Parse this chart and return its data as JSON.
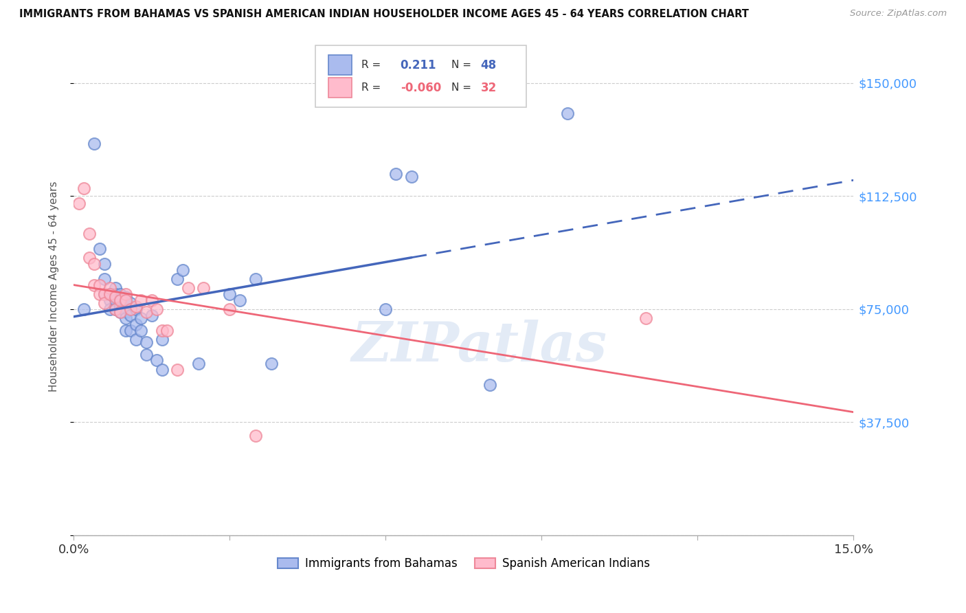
{
  "title": "IMMIGRANTS FROM BAHAMAS VS SPANISH AMERICAN INDIAN HOUSEHOLDER INCOME AGES 45 - 64 YEARS CORRELATION CHART",
  "source": "Source: ZipAtlas.com",
  "ylabel_label": "Householder Income Ages 45 - 64 years",
  "xlim": [
    0.0,
    0.15
  ],
  "ylim": [
    0,
    165000
  ],
  "ytick_values": [
    0,
    37500,
    75000,
    112500,
    150000
  ],
  "ytick_labels": [
    "",
    "$37,500",
    "$75,000",
    "$112,500",
    "$150,000"
  ],
  "xtick_values": [
    0.0,
    0.03,
    0.06,
    0.09,
    0.12,
    0.15
  ],
  "xtick_labels": [
    "0.0%",
    "",
    "",
    "",
    "",
    "15.0%"
  ],
  "blue_R": 0.211,
  "blue_N": 48,
  "pink_R": -0.06,
  "pink_N": 32,
  "legend_label_blue": "Immigrants from Bahamas",
  "legend_label_pink": "Spanish American Indians",
  "watermark": "ZIPatlas",
  "blue_dot_face": "#AABBEE",
  "blue_dot_edge": "#6688CC",
  "pink_dot_face": "#FFBBCC",
  "pink_dot_edge": "#EE8899",
  "blue_line_color": "#4466BB",
  "pink_line_color": "#EE6677",
  "right_tick_color": "#4499FF",
  "blue_scatter_x": [
    0.002,
    0.004,
    0.005,
    0.006,
    0.006,
    0.006,
    0.007,
    0.007,
    0.007,
    0.008,
    0.008,
    0.008,
    0.008,
    0.009,
    0.009,
    0.009,
    0.009,
    0.01,
    0.01,
    0.01,
    0.01,
    0.01,
    0.011,
    0.011,
    0.011,
    0.012,
    0.012,
    0.012,
    0.013,
    0.013,
    0.014,
    0.014,
    0.015,
    0.016,
    0.017,
    0.017,
    0.02,
    0.021,
    0.024,
    0.03,
    0.032,
    0.035,
    0.038,
    0.06,
    0.062,
    0.065,
    0.08,
    0.095
  ],
  "blue_scatter_y": [
    75000,
    130000,
    95000,
    90000,
    85000,
    80000,
    80000,
    78000,
    75000,
    82000,
    80000,
    78000,
    75000,
    80000,
    78000,
    76000,
    74000,
    79000,
    77000,
    74000,
    72000,
    68000,
    77000,
    73000,
    68000,
    75000,
    70000,
    65000,
    72000,
    68000,
    64000,
    60000,
    73000,
    58000,
    65000,
    55000,
    85000,
    88000,
    57000,
    80000,
    78000,
    85000,
    57000,
    75000,
    120000,
    119000,
    50000,
    140000
  ],
  "pink_scatter_x": [
    0.001,
    0.002,
    0.003,
    0.003,
    0.004,
    0.004,
    0.005,
    0.005,
    0.006,
    0.006,
    0.007,
    0.007,
    0.008,
    0.008,
    0.009,
    0.009,
    0.01,
    0.01,
    0.011,
    0.012,
    0.013,
    0.014,
    0.015,
    0.016,
    0.017,
    0.018,
    0.02,
    0.022,
    0.025,
    0.03,
    0.035,
    0.11
  ],
  "pink_scatter_y": [
    110000,
    115000,
    100000,
    92000,
    90000,
    83000,
    83000,
    80000,
    80000,
    77000,
    82000,
    80000,
    79000,
    75000,
    78000,
    74000,
    80000,
    78000,
    75000,
    76000,
    78000,
    74000,
    78000,
    75000,
    68000,
    68000,
    55000,
    82000,
    82000,
    75000,
    33000,
    72000
  ]
}
